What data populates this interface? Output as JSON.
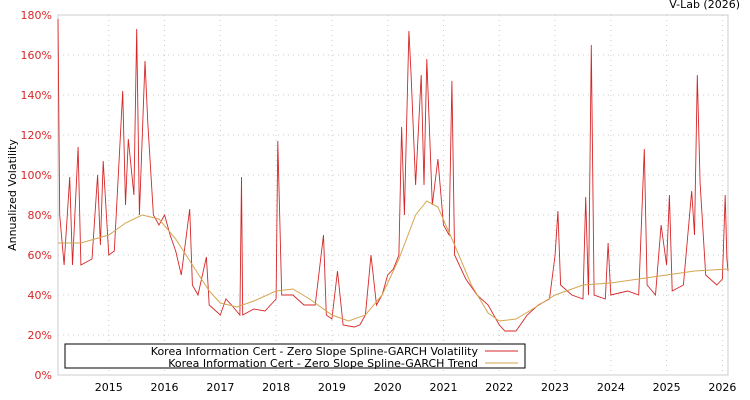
{
  "credit": "V-Lab (2026)",
  "chart_data": {
    "type": "line",
    "title": "",
    "xlabel": "",
    "ylabel": "Annualized Volatility",
    "xlim": [
      2014.09,
      2026.1
    ],
    "ylim": [
      0,
      180
    ],
    "grid": true,
    "legend_position": "bottom-left",
    "y_ticks": [
      "0%",
      "20%",
      "40%",
      "60%",
      "80%",
      "100%",
      "120%",
      "140%",
      "160%",
      "180%"
    ],
    "y_tick_values": [
      0,
      20,
      40,
      60,
      80,
      100,
      120,
      140,
      160,
      180
    ],
    "x_ticks": [
      "2015",
      "2016",
      "2017",
      "2018",
      "2019",
      "2020",
      "2021",
      "2022",
      "2023",
      "2024",
      "2025",
      "2026"
    ],
    "x_tick_values": [
      2015,
      2016,
      2017,
      2018,
      2019,
      2020,
      2021,
      2022,
      2023,
      2024,
      2025,
      2026
    ],
    "series": [
      {
        "name": "Korea Information Cert - Zero Slope Spline-GARCH Volatility",
        "color": "#d62728",
        "points": [
          [
            2014.09,
            178
          ],
          [
            2014.12,
            80
          ],
          [
            2014.2,
            55
          ],
          [
            2014.3,
            99
          ],
          [
            2014.35,
            55
          ],
          [
            2014.45,
            114
          ],
          [
            2014.5,
            55
          ],
          [
            2014.7,
            58
          ],
          [
            2014.8,
            100
          ],
          [
            2014.85,
            65
          ],
          [
            2014.9,
            107
          ],
          [
            2015,
            60
          ],
          [
            2015.1,
            62
          ],
          [
            2015.2,
            115
          ],
          [
            2015.25,
            142
          ],
          [
            2015.3,
            85
          ],
          [
            2015.35,
            118
          ],
          [
            2015.45,
            90
          ],
          [
            2015.5,
            173
          ],
          [
            2015.55,
            80
          ],
          [
            2015.65,
            157
          ],
          [
            2015.7,
            126
          ],
          [
            2015.8,
            80
          ],
          [
            2015.9,
            75
          ],
          [
            2016,
            80
          ],
          [
            2016.1,
            70
          ],
          [
            2016.2,
            62
          ],
          [
            2016.3,
            50
          ],
          [
            2016.45,
            83
          ],
          [
            2016.5,
            45
          ],
          [
            2016.6,
            40
          ],
          [
            2016.75,
            59
          ],
          [
            2016.8,
            35
          ],
          [
            2017,
            30
          ],
          [
            2017.1,
            38
          ],
          [
            2017.2,
            35
          ],
          [
            2017.35,
            30
          ],
          [
            2017.38,
            99
          ],
          [
            2017.4,
            30
          ],
          [
            2017.6,
            33
          ],
          [
            2017.8,
            32
          ],
          [
            2018,
            38
          ],
          [
            2018.03,
            117
          ],
          [
            2018.1,
            40
          ],
          [
            2018.3,
            40
          ],
          [
            2018.5,
            35
          ],
          [
            2018.7,
            35
          ],
          [
            2018.85,
            70
          ],
          [
            2018.9,
            30
          ],
          [
            2019,
            28
          ],
          [
            2019.1,
            52
          ],
          [
            2019.2,
            25
          ],
          [
            2019.4,
            24
          ],
          [
            2019.5,
            25
          ],
          [
            2019.6,
            30
          ],
          [
            2019.7,
            60
          ],
          [
            2019.8,
            35
          ],
          [
            2019.9,
            40
          ],
          [
            2020,
            50
          ],
          [
            2020.1,
            53
          ],
          [
            2020.2,
            60
          ],
          [
            2020.25,
            124
          ],
          [
            2020.3,
            80
          ],
          [
            2020.38,
            172
          ],
          [
            2020.42,
            150
          ],
          [
            2020.5,
            95
          ],
          [
            2020.6,
            150
          ],
          [
            2020.65,
            95
          ],
          [
            2020.7,
            158
          ],
          [
            2020.8,
            85
          ],
          [
            2020.9,
            108
          ],
          [
            2021,
            75
          ],
          [
            2021.1,
            70
          ],
          [
            2021.15,
            147
          ],
          [
            2021.2,
            60
          ],
          [
            2021.4,
            48
          ],
          [
            2021.6,
            40
          ],
          [
            2021.8,
            35
          ],
          [
            2022,
            25
          ],
          [
            2022.1,
            22
          ],
          [
            2022.3,
            22
          ],
          [
            2022.5,
            30
          ],
          [
            2022.7,
            35
          ],
          [
            2022.9,
            38
          ],
          [
            2023,
            60
          ],
          [
            2023.05,
            82
          ],
          [
            2023.1,
            45
          ],
          [
            2023.3,
            40
          ],
          [
            2023.5,
            38
          ],
          [
            2023.55,
            89
          ],
          [
            2023.6,
            40
          ],
          [
            2023.65,
            165
          ],
          [
            2023.7,
            40
          ],
          [
            2023.9,
            38
          ],
          [
            2023.95,
            66
          ],
          [
            2024,
            40
          ],
          [
            2024.3,
            42
          ],
          [
            2024.5,
            40
          ],
          [
            2024.6,
            113
          ],
          [
            2024.65,
            45
          ],
          [
            2024.8,
            40
          ],
          [
            2024.9,
            75
          ],
          [
            2025,
            55
          ],
          [
            2025.05,
            90
          ],
          [
            2025.1,
            42
          ],
          [
            2025.3,
            45
          ],
          [
            2025.45,
            92
          ],
          [
            2025.5,
            70
          ],
          [
            2025.55,
            150
          ],
          [
            2025.6,
            96
          ],
          [
            2025.7,
            50
          ],
          [
            2025.9,
            45
          ],
          [
            2026,
            48
          ],
          [
            2026.05,
            90
          ],
          [
            2026.08,
            58
          ],
          [
            2026.1,
            52
          ]
        ]
      },
      {
        "name": "Korea Information Cert - Zero Slope Spline-GARCH Trend",
        "color": "#d4a650",
        "points": [
          [
            2014.09,
            66
          ],
          [
            2014.5,
            66
          ],
          [
            2015,
            70
          ],
          [
            2015.3,
            76
          ],
          [
            2015.6,
            80
          ],
          [
            2015.9,
            78
          ],
          [
            2016.2,
            68
          ],
          [
            2016.5,
            55
          ],
          [
            2016.8,
            42
          ],
          [
            2017,
            36
          ],
          [
            2017.3,
            34
          ],
          [
            2017.6,
            37
          ],
          [
            2018,
            42
          ],
          [
            2018.3,
            43
          ],
          [
            2018.6,
            38
          ],
          [
            2019,
            30
          ],
          [
            2019.3,
            27
          ],
          [
            2019.6,
            30
          ],
          [
            2019.9,
            40
          ],
          [
            2020.2,
            58
          ],
          [
            2020.5,
            80
          ],
          [
            2020.7,
            87
          ],
          [
            2020.9,
            84
          ],
          [
            2021.2,
            65
          ],
          [
            2021.5,
            45
          ],
          [
            2021.8,
            31
          ],
          [
            2022,
            27
          ],
          [
            2022.3,
            28
          ],
          [
            2022.6,
            33
          ],
          [
            2023,
            40
          ],
          [
            2023.5,
            45
          ],
          [
            2024,
            46
          ],
          [
            2024.5,
            48
          ],
          [
            2025,
            50
          ],
          [
            2025.5,
            52
          ],
          [
            2026.1,
            53
          ]
        ]
      }
    ]
  }
}
